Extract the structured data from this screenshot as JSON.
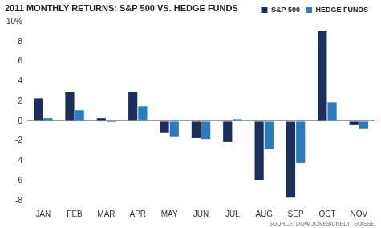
{
  "chart_data": {
    "type": "bar",
    "title": "2011 MONTHLY RETURNS: S&P 500 VS. HEDGE FUNDS",
    "source": "SOURCE: DOW JONES/CREDIT SUISSE",
    "categories": [
      "JAN",
      "FEB",
      "MAR",
      "APR",
      "MAY",
      "JUN",
      "JUL",
      "AUG",
      "SEP",
      "OCT",
      "NOV"
    ],
    "series": [
      {
        "name": "S&P 500",
        "color": "#1b2f5e",
        "values": [
          2.3,
          2.9,
          0.3,
          2.9,
          -1.2,
          -1.7,
          -2.1,
          -5.9,
          -7.7,
          9.1,
          -0.4
        ]
      },
      {
        "name": "HEDGE FUNDS",
        "color": "#2b7bbf",
        "values": [
          0.3,
          1.1,
          -0.1,
          1.5,
          -1.6,
          -1.8,
          0.2,
          -2.8,
          -4.2,
          1.9,
          -0.8
        ]
      }
    ],
    "ylim": [
      -8,
      10
    ],
    "yticks": [
      -8,
      -6,
      -4,
      -2,
      0,
      2,
      4,
      6,
      8,
      {
        "value": 10,
        "label": "10%"
      }
    ],
    "grid": false,
    "legend": "top-right"
  }
}
